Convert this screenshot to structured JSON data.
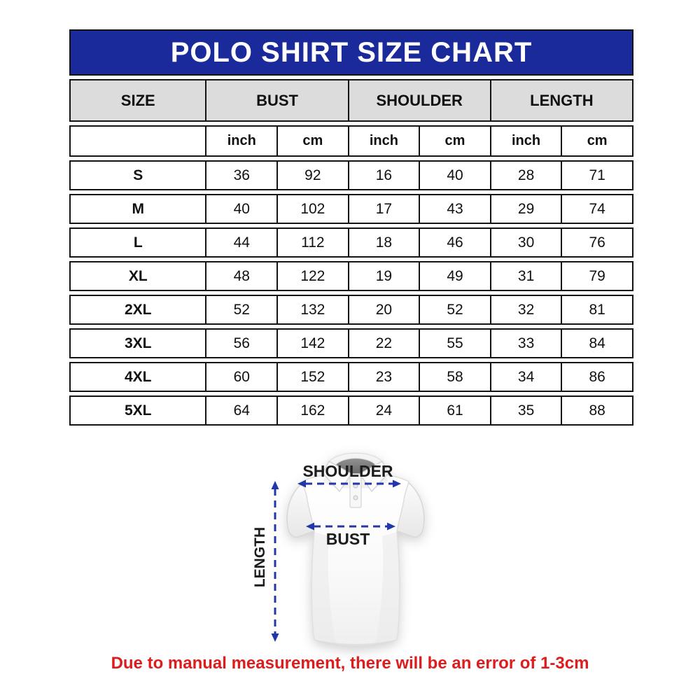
{
  "title": "POLO SHIRT SIZE CHART",
  "size_chart": {
    "column_groups": [
      "SIZE",
      "BUST",
      "SHOULDER",
      "LENGTH"
    ],
    "units": [
      "inch",
      "cm",
      "inch",
      "cm",
      "inch",
      "cm"
    ],
    "rows": [
      {
        "size": "S",
        "values": [
          "36",
          "92",
          "16",
          "40",
          "28",
          "71"
        ]
      },
      {
        "size": "M",
        "values": [
          "40",
          "102",
          "17",
          "43",
          "29",
          "74"
        ]
      },
      {
        "size": "L",
        "values": [
          "44",
          "112",
          "18",
          "46",
          "30",
          "76"
        ]
      },
      {
        "size": "XL",
        "values": [
          "48",
          "122",
          "19",
          "49",
          "31",
          "79"
        ]
      },
      {
        "size": "2XL",
        "values": [
          "52",
          "132",
          "20",
          "52",
          "32",
          "81"
        ]
      },
      {
        "size": "3XL",
        "values": [
          "56",
          "142",
          "22",
          "55",
          "33",
          "84"
        ]
      },
      {
        "size": "4XL",
        "values": [
          "60",
          "152",
          "23",
          "58",
          "34",
          "86"
        ]
      },
      {
        "size": "5XL",
        "values": [
          "64",
          "162",
          "24",
          "61",
          "35",
          "88"
        ]
      }
    ]
  },
  "diagram": {
    "shoulder_label": "SHOULDER",
    "bust_label": "BUST",
    "length_label": "LENGTH"
  },
  "footnote": "Due to manual measurement, there will be an error of 1-3cm",
  "colors": {
    "header_blue": "#1a2a9b",
    "header_gray": "#dcdcdc",
    "border_black": "#141414",
    "arrow_navy": "#2238aa",
    "footnote_red": "#dd1d1d"
  }
}
